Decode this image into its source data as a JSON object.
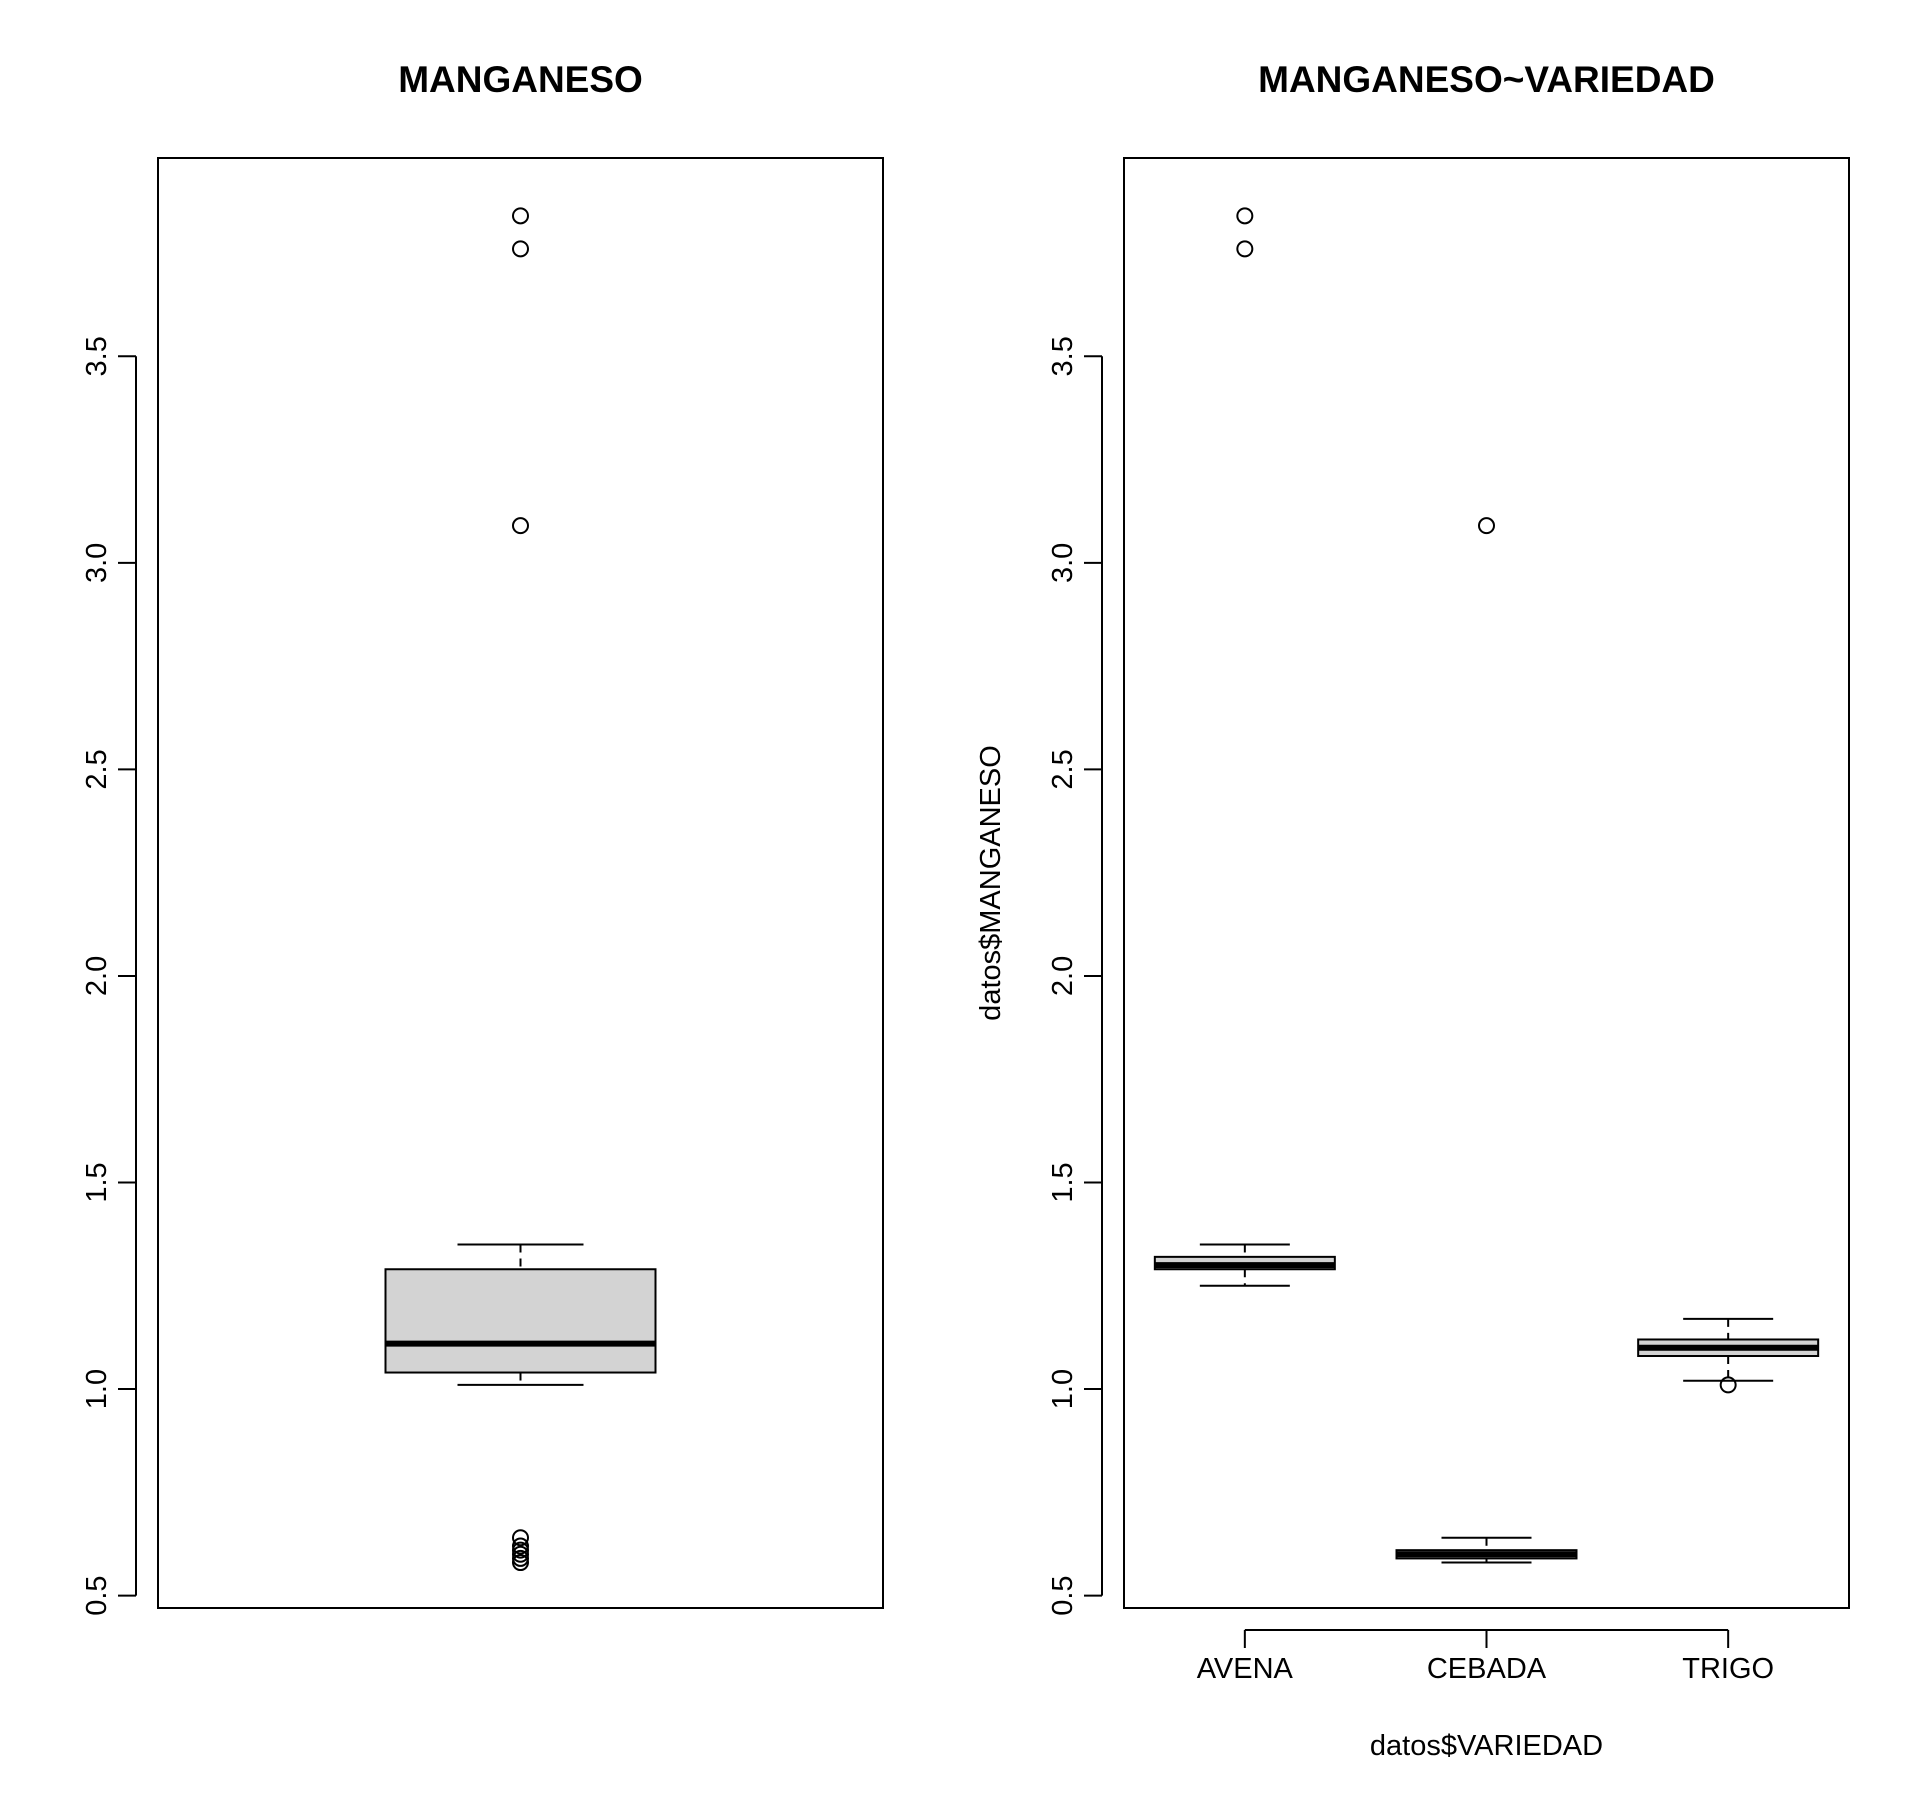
{
  "chart_data": [
    {
      "type": "box",
      "title": "MANGANESO",
      "xlabel": "",
      "ylabel": "",
      "ylim": [
        0.47,
        3.98
      ],
      "yticks": [
        0.5,
        1.0,
        1.5,
        2.0,
        2.5,
        3.0,
        3.5
      ],
      "ytick_labels": [
        "0.5",
        "1.0",
        "1.5",
        "2.0",
        "2.5",
        "3.0",
        "3.5"
      ],
      "groups": [
        {
          "name": "",
          "whisker_low": 1.01,
          "q1": 1.04,
          "median": 1.11,
          "q3": 1.29,
          "whisker_high": 1.35,
          "outliers": [
            3.84,
            3.76,
            3.09,
            0.64,
            0.62,
            0.61,
            0.6,
            0.59,
            0.58
          ]
        }
      ],
      "box_color": "#d3d3d3"
    },
    {
      "type": "box",
      "title": "MANGANESO~VARIEDAD",
      "xlabel": "datos$VARIEDAD",
      "ylabel": "datos$MANGANESO",
      "ylim": [
        0.47,
        3.98
      ],
      "yticks": [
        0.5,
        1.0,
        1.5,
        2.0,
        2.5,
        3.0,
        3.5
      ],
      "ytick_labels": [
        "0.5",
        "1.0",
        "1.5",
        "2.0",
        "2.5",
        "3.0",
        "3.5"
      ],
      "categories": [
        "AVENA",
        "CEBADA",
        "TRIGO"
      ],
      "groups": [
        {
          "name": "AVENA",
          "whisker_low": 1.25,
          "q1": 1.29,
          "median": 1.3,
          "q3": 1.32,
          "whisker_high": 1.35,
          "outliers": [
            3.84,
            3.76
          ]
        },
        {
          "name": "CEBADA",
          "whisker_low": 0.58,
          "q1": 0.59,
          "median": 0.6,
          "q3": 0.61,
          "whisker_high": 0.64,
          "outliers": [
            3.09
          ]
        },
        {
          "name": "TRIGO",
          "whisker_low": 1.02,
          "q1": 1.08,
          "median": 1.1,
          "q3": 1.12,
          "whisker_high": 1.17,
          "outliers": [
            1.01
          ]
        }
      ],
      "box_color": "#d3d3d3"
    }
  ]
}
